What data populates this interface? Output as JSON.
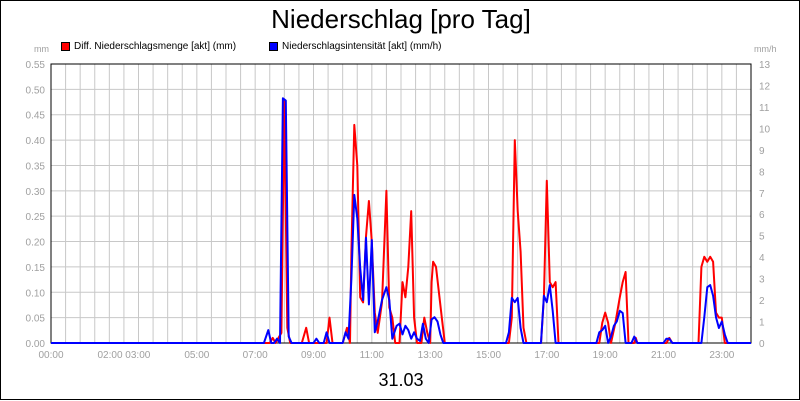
{
  "title": "Niederschlag [pro Tag]",
  "date_label": "31.03",
  "colors": {
    "series1": "#ff0000",
    "series2": "#0000ff",
    "grid": "#c8c8c8",
    "axis_text": "#a0a0a0"
  },
  "chart_data": {
    "type": "line",
    "title": "Niederschlag [pro Tag]",
    "xlabel": "31.03",
    "y_left_unit": "mm",
    "y_right_unit": "mm/h",
    "ylim_left": [
      0,
      0.55
    ],
    "ylim_right": [
      0,
      13
    ],
    "xlim_hours": [
      0,
      24
    ],
    "y_left_ticks": [
      "0.00",
      "0.05",
      "0.10",
      "0.15",
      "0.20",
      "0.25",
      "0.30",
      "0.35",
      "0.40",
      "0.45",
      "0.50",
      "0.55"
    ],
    "y_right_ticks": [
      "0",
      "1",
      "2",
      "3",
      "4",
      "5",
      "6",
      "7",
      "8",
      "9",
      "10",
      "11",
      "12",
      "13"
    ],
    "x_tick_labels": [
      {
        "h": 0,
        "label": "00:00"
      },
      {
        "h": 2.5,
        "label": "02:00 03:00"
      },
      {
        "h": 5,
        "label": "05:00"
      },
      {
        "h": 7,
        "label": "07:00"
      },
      {
        "h": 9,
        "label": "09:00"
      },
      {
        "h": 11,
        "label": "11:00"
      },
      {
        "h": 13,
        "label": "13:00"
      },
      {
        "h": 15,
        "label": "15:00"
      },
      {
        "h": 17,
        "label": "17:00"
      },
      {
        "h": 19,
        "label": "19:00"
      },
      {
        "h": 21,
        "label": "21:00"
      },
      {
        "h": 23,
        "label": "23:00"
      }
    ],
    "grid": true,
    "legend_position": "top-left",
    "series": [
      {
        "name": "Diff. Niederschlagsmenge [akt] (mm)",
        "axis": "left",
        "color": "#ff0000",
        "points": [
          [
            0,
            0
          ],
          [
            7.5,
            0
          ],
          [
            7.6,
            0.01
          ],
          [
            7.7,
            0
          ],
          [
            7.8,
            0.01
          ],
          [
            7.9,
            0.02
          ],
          [
            8.0,
            0.48
          ],
          [
            8.1,
            0.03
          ],
          [
            8.2,
            0
          ],
          [
            8.6,
            0
          ],
          [
            8.75,
            0.03
          ],
          [
            8.85,
            0
          ],
          [
            9.45,
            0
          ],
          [
            9.55,
            0.05
          ],
          [
            9.65,
            0
          ],
          [
            10.0,
            0
          ],
          [
            10.15,
            0.03
          ],
          [
            10.25,
            0
          ],
          [
            10.3,
            0.18
          ],
          [
            10.4,
            0.43
          ],
          [
            10.5,
            0.35
          ],
          [
            10.6,
            0.09
          ],
          [
            10.7,
            0.08
          ],
          [
            10.8,
            0.21
          ],
          [
            10.9,
            0.28
          ],
          [
            11.0,
            0.2
          ],
          [
            11.1,
            0.06
          ],
          [
            11.2,
            0.02
          ],
          [
            11.35,
            0.08
          ],
          [
            11.5,
            0.3
          ],
          [
            11.6,
            0.07
          ],
          [
            11.7,
            0.05
          ],
          [
            11.8,
            0
          ],
          [
            11.95,
            0
          ],
          [
            12.05,
            0.12
          ],
          [
            12.15,
            0.09
          ],
          [
            12.25,
            0.15
          ],
          [
            12.35,
            0.26
          ],
          [
            12.45,
            0.05
          ],
          [
            12.55,
            0
          ],
          [
            12.7,
            0
          ],
          [
            12.8,
            0.05
          ],
          [
            12.9,
            0.02
          ],
          [
            13.0,
            0
          ],
          [
            13.05,
            0.12
          ],
          [
            13.1,
            0.16
          ],
          [
            13.2,
            0.15
          ],
          [
            13.3,
            0.1
          ],
          [
            13.4,
            0.05
          ],
          [
            13.5,
            0
          ],
          [
            15.7,
            0
          ],
          [
            15.8,
            0.05
          ],
          [
            15.9,
            0.4
          ],
          [
            16.0,
            0.26
          ],
          [
            16.1,
            0.18
          ],
          [
            16.2,
            0.03
          ],
          [
            16.3,
            0
          ],
          [
            16.8,
            0
          ],
          [
            16.9,
            0.09
          ],
          [
            17.0,
            0.32
          ],
          [
            17.1,
            0.12
          ],
          [
            17.2,
            0.11
          ],
          [
            17.3,
            0.12
          ],
          [
            17.4,
            0
          ],
          [
            18.8,
            0
          ],
          [
            18.9,
            0.04
          ],
          [
            19.0,
            0.06
          ],
          [
            19.1,
            0.04
          ],
          [
            19.2,
            0
          ],
          [
            19.35,
            0.04
          ],
          [
            19.5,
            0.09
          ],
          [
            19.6,
            0.12
          ],
          [
            19.7,
            0.14
          ],
          [
            19.8,
            0
          ],
          [
            20.0,
            0
          ],
          [
            20.05,
            0.01
          ],
          [
            20.1,
            0
          ],
          [
            21.1,
            0
          ],
          [
            21.2,
            0.01
          ],
          [
            21.3,
            0
          ],
          [
            22.2,
            0
          ],
          [
            22.3,
            0.15
          ],
          [
            22.4,
            0.17
          ],
          [
            22.5,
            0.16
          ],
          [
            22.6,
            0.17
          ],
          [
            22.7,
            0.16
          ],
          [
            22.8,
            0.06
          ],
          [
            22.9,
            0.05
          ],
          [
            23.0,
            0.05
          ],
          [
            23.1,
            0
          ],
          [
            24,
            0
          ]
        ]
      },
      {
        "name": "Niederschlagsintensität [akt] (mm/h)",
        "axis": "right",
        "color": "#0000ff",
        "points": [
          [
            0,
            0
          ],
          [
            7.3,
            0
          ],
          [
            7.45,
            0.6
          ],
          [
            7.55,
            0
          ],
          [
            7.65,
            0
          ],
          [
            7.75,
            0.2
          ],
          [
            7.85,
            0
          ],
          [
            7.95,
            11.4
          ],
          [
            8.05,
            11.3
          ],
          [
            8.15,
            0.3
          ],
          [
            8.25,
            0
          ],
          [
            9.0,
            0
          ],
          [
            9.1,
            0.2
          ],
          [
            9.2,
            0
          ],
          [
            9.35,
            0
          ],
          [
            9.45,
            0.5
          ],
          [
            9.55,
            0
          ],
          [
            10.0,
            0
          ],
          [
            10.1,
            0.5
          ],
          [
            10.2,
            0.2
          ],
          [
            10.3,
            3.0
          ],
          [
            10.4,
            6.9
          ],
          [
            10.5,
            5.8
          ],
          [
            10.6,
            3.5
          ],
          [
            10.7,
            2.0
          ],
          [
            10.8,
            4.9
          ],
          [
            10.9,
            1.8
          ],
          [
            11.0,
            4.8
          ],
          [
            11.1,
            0.5
          ],
          [
            11.2,
            1.0
          ],
          [
            11.35,
            2.0
          ],
          [
            11.5,
            2.6
          ],
          [
            11.6,
            2.0
          ],
          [
            11.7,
            0.2
          ],
          [
            11.85,
            0.8
          ],
          [
            11.95,
            0.9
          ],
          [
            12.05,
            0.4
          ],
          [
            12.15,
            0.8
          ],
          [
            12.25,
            0.6
          ],
          [
            12.35,
            0.2
          ],
          [
            12.45,
            0.5
          ],
          [
            12.55,
            0.2
          ],
          [
            12.65,
            0.1
          ],
          [
            12.75,
            0.9
          ],
          [
            12.85,
            0.2
          ],
          [
            12.95,
            0
          ],
          [
            13.05,
            1.1
          ],
          [
            13.15,
            1.2
          ],
          [
            13.25,
            1.0
          ],
          [
            13.35,
            0.4
          ],
          [
            13.45,
            0
          ],
          [
            15.6,
            0
          ],
          [
            15.7,
            0.5
          ],
          [
            15.8,
            2.1
          ],
          [
            15.9,
            1.9
          ],
          [
            16.0,
            2.1
          ],
          [
            16.1,
            0.7
          ],
          [
            16.2,
            0
          ],
          [
            16.8,
            0
          ],
          [
            16.9,
            2.2
          ],
          [
            17.0,
            1.9
          ],
          [
            17.1,
            2.7
          ],
          [
            17.2,
            1.5
          ],
          [
            17.3,
            0
          ],
          [
            18.7,
            0
          ],
          [
            18.8,
            0.5
          ],
          [
            18.9,
            0.6
          ],
          [
            19.0,
            0.8
          ],
          [
            19.1,
            0
          ],
          [
            19.2,
            0.3
          ],
          [
            19.3,
            0.8
          ],
          [
            19.4,
            1.0
          ],
          [
            19.5,
            1.5
          ],
          [
            19.6,
            1.4
          ],
          [
            19.7,
            0
          ],
          [
            19.9,
            0
          ],
          [
            20.0,
            0.3
          ],
          [
            20.1,
            0
          ],
          [
            21.0,
            0
          ],
          [
            21.1,
            0.2
          ],
          [
            21.2,
            0.2
          ],
          [
            21.3,
            0
          ],
          [
            22.3,
            0
          ],
          [
            22.4,
            1.2
          ],
          [
            22.5,
            2.6
          ],
          [
            22.6,
            2.7
          ],
          [
            22.7,
            2.2
          ],
          [
            22.8,
            1.2
          ],
          [
            22.9,
            0.7
          ],
          [
            23.0,
            1.0
          ],
          [
            23.1,
            0.4
          ],
          [
            23.2,
            0
          ],
          [
            24,
            0
          ]
        ]
      }
    ]
  }
}
